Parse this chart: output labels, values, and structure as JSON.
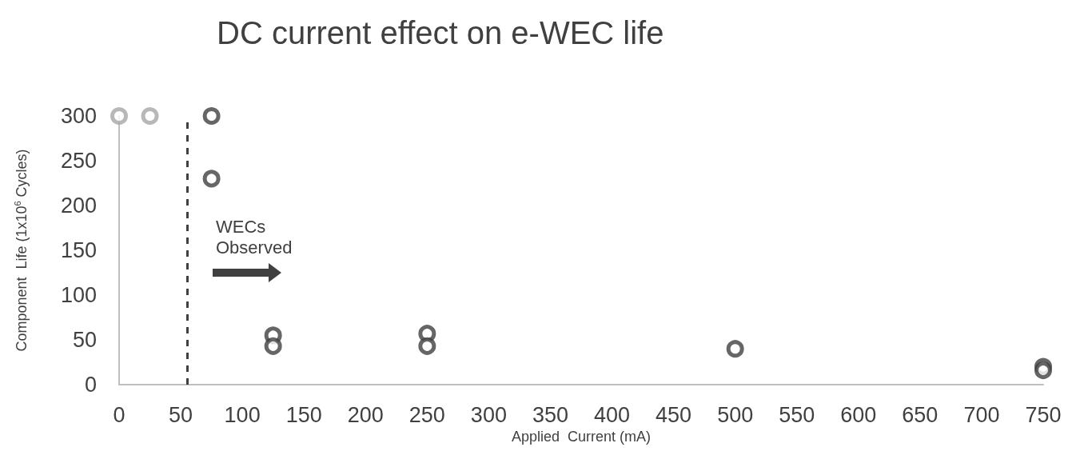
{
  "chart_data": {
    "type": "scatter",
    "title": "DC current effect on e-WEC life",
    "xlabel": "Applied  Current (mA)",
    "ylabel": "Component  Life (1x10$^{6}$ Cycles)",
    "series": [
      {
        "color": "#a6a6a6",
        "x": [
          0,
          25
        ],
        "values": [
          300,
          300
        ]
      },
      {
        "color": "#404040",
        "x": [
          75,
          75,
          125,
          125,
          250,
          250,
          500,
          750,
          750
        ],
        "values": [
          300,
          230,
          55,
          43,
          57,
          43,
          40,
          20,
          16
        ]
      }
    ],
    "xlim": [
      0,
      750
    ],
    "xticks": [
      0,
      50,
      100,
      150,
      200,
      250,
      300,
      350,
      400,
      450,
      500,
      550,
      600,
      650,
      700,
      750
    ],
    "ylim": [
      0,
      300
    ],
    "yticks": [
      0,
      50,
      100,
      150,
      200,
      250,
      300
    ],
    "ref_lines": [
      {
        "axis": "x",
        "value": 55,
        "color": "#404040",
        "line_style": "dashed"
      }
    ],
    "annotations": [
      "WECs Observed"
    ],
    "marker": "circle",
    "grid": false
  }
}
